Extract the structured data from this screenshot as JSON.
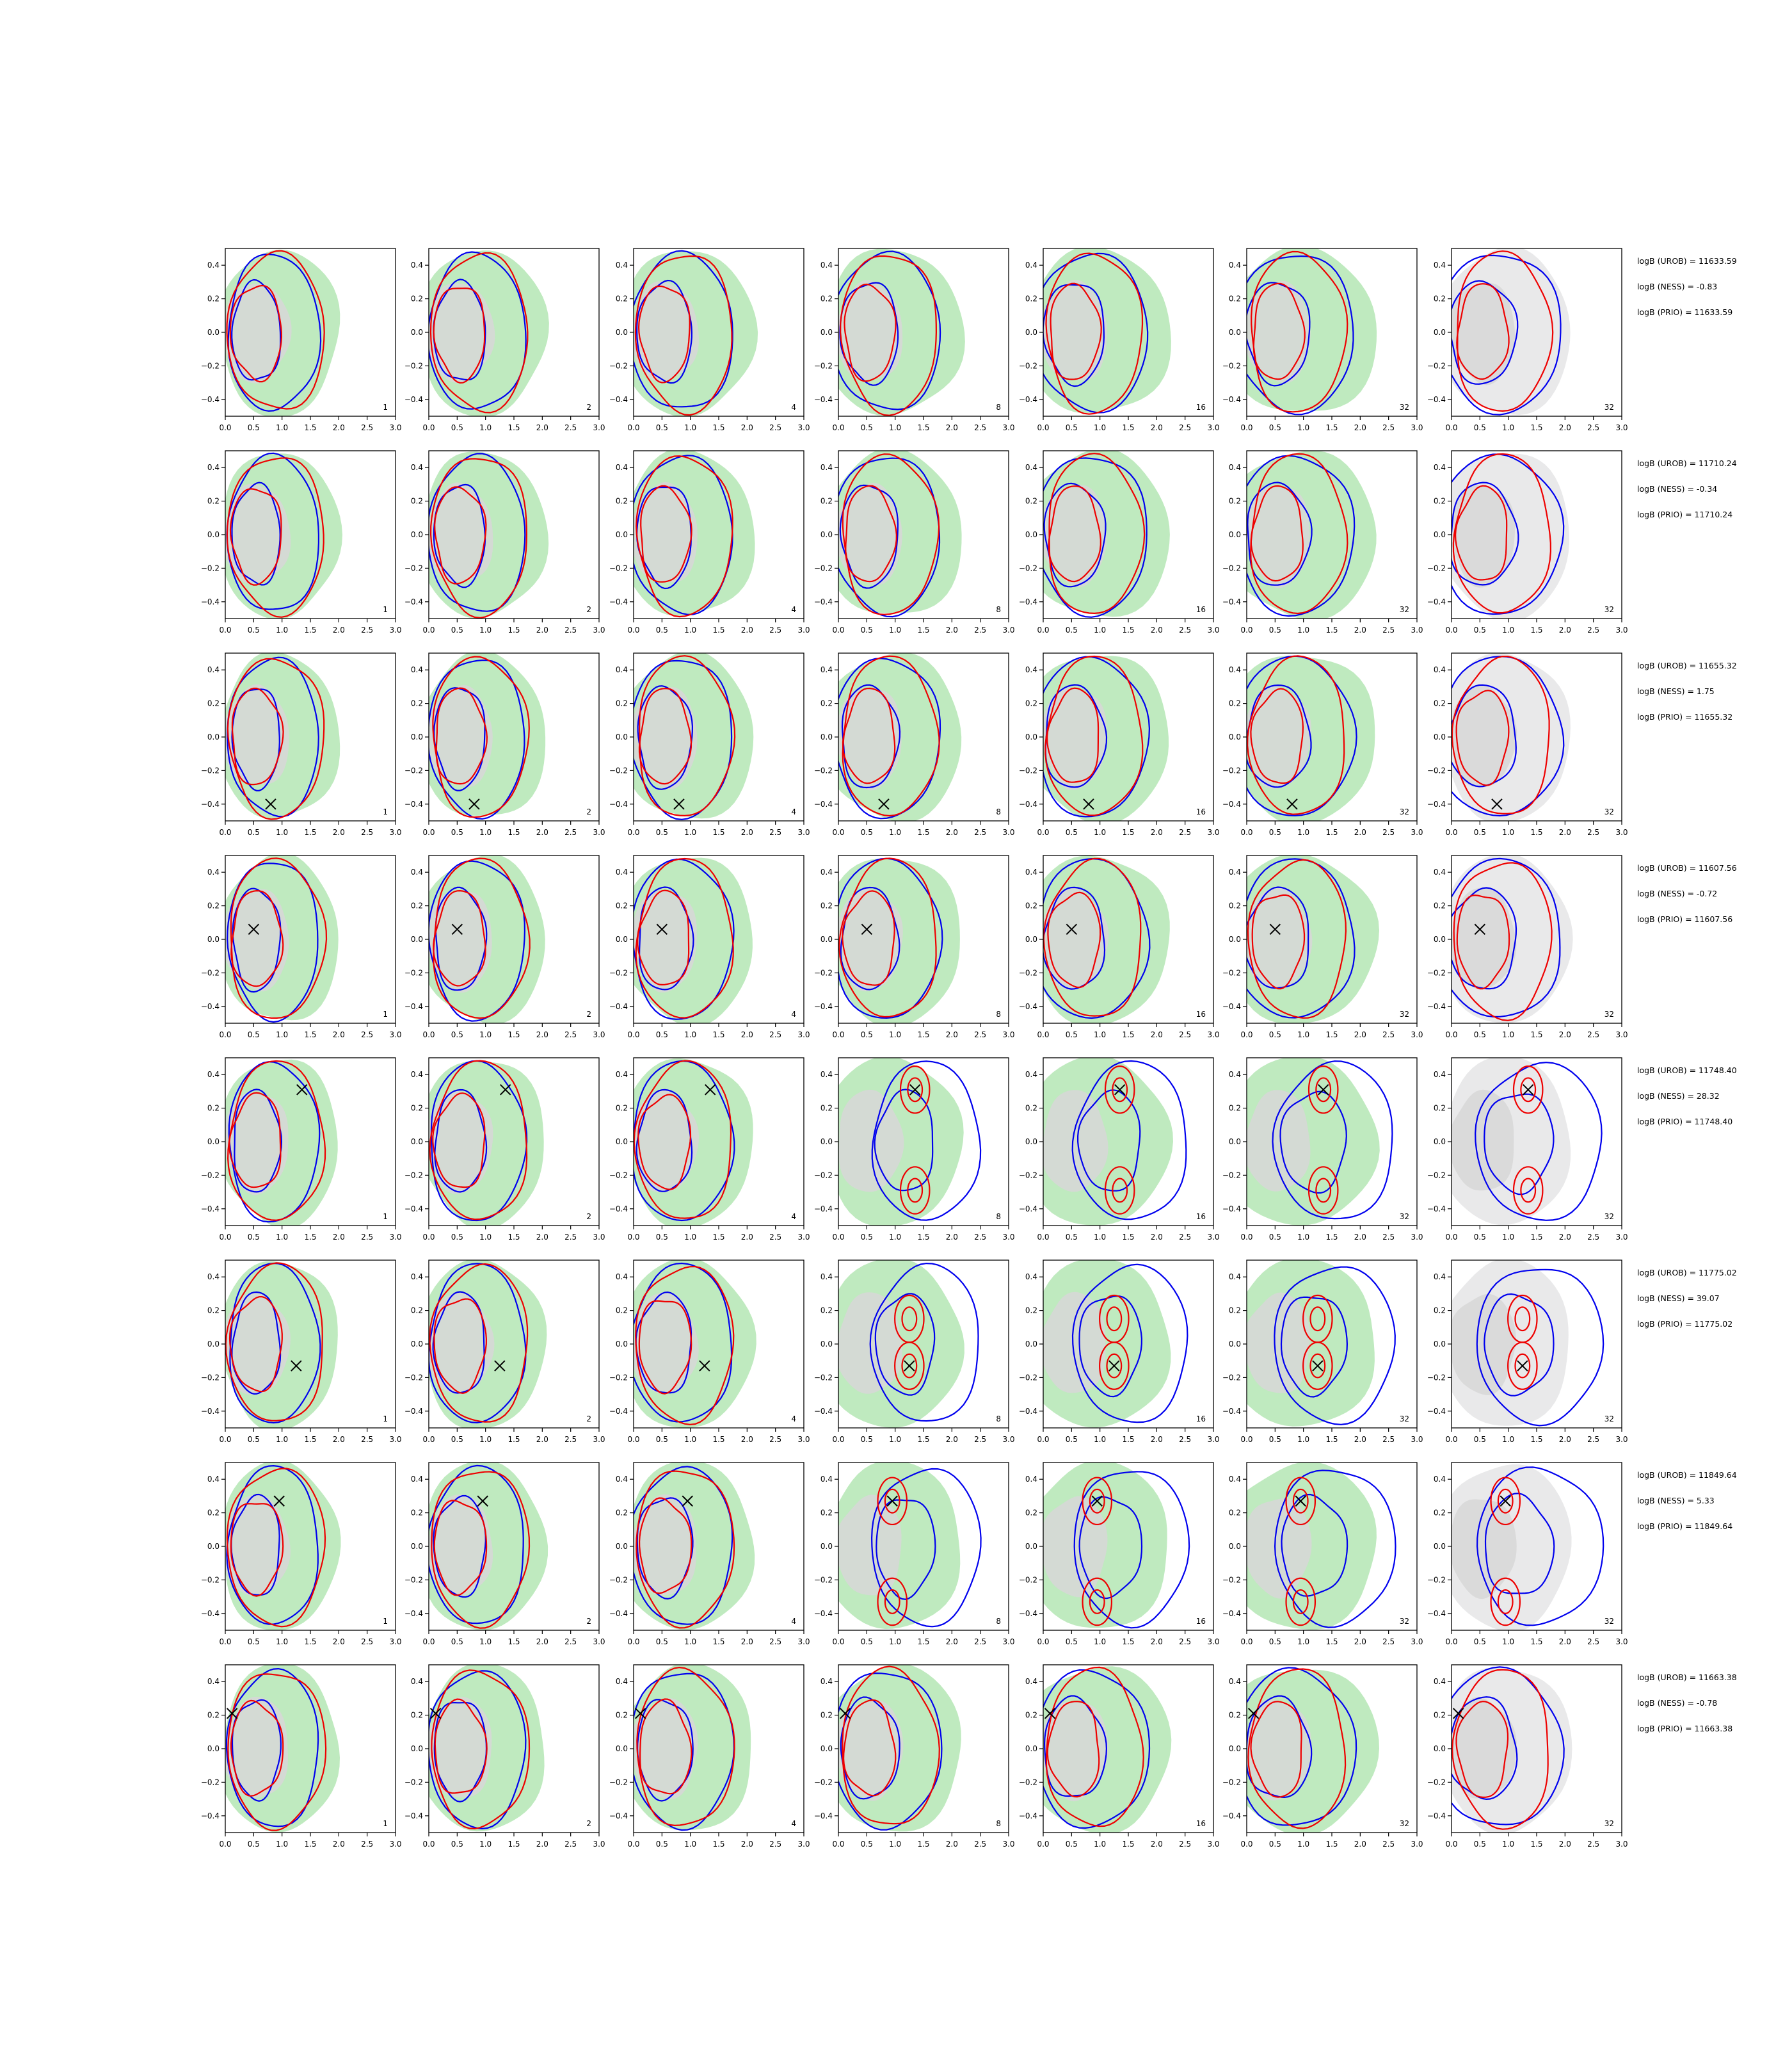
{
  "chart_data": {
    "type": "contour",
    "layout": {
      "rows": 8,
      "cols": 7
    },
    "xlim": [
      0.0,
      3.0
    ],
    "ylim": [
      -0.5,
      0.5
    ],
    "xticks": [
      "0.0",
      "0.5",
      "1.0",
      "1.5",
      "2.0",
      "2.5",
      "3.0"
    ],
    "yticks": [
      "0.4",
      "0.2",
      "0.0",
      "−0.2",
      "−0.4"
    ],
    "col_labels": [
      "1",
      "2",
      "4",
      "8",
      "16",
      "32",
      "32"
    ],
    "colors": {
      "green_fill": "#bfeabf",
      "gray_fill": "#d7d7d7",
      "outer_gray": "#e9e9ea",
      "blue": "#0000ee",
      "red": "#ee0000",
      "marker": "#000000"
    },
    "rows": [
      {
        "stats": [
          "logB (UROB) = 11633.59",
          "logB (NESS) = -0.83",
          "logB (PRIO) = 11633.59"
        ],
        "marker": null,
        "mode": "single"
      },
      {
        "stats": [
          "logB (UROB) = 11710.24",
          "logB (NESS) = -0.34",
          "logB (PRIO) = 11710.24"
        ],
        "marker": null,
        "mode": "single"
      },
      {
        "stats": [
          "logB (UROB) = 11655.32",
          "logB (NESS) = 1.75",
          "logB (PRIO) = 11655.32"
        ],
        "marker": [
          0.8,
          -0.4
        ],
        "mode": "single"
      },
      {
        "stats": [
          "logB (UROB) = 11607.56",
          "logB (NESS) = -0.72",
          "logB (PRIO) = 11607.56"
        ],
        "marker": [
          0.5,
          0.06
        ],
        "mode": "single"
      },
      {
        "stats": [
          "logB (UROB) = 11748.40",
          "logB (NESS) = 28.32",
          "logB (PRIO) = 11748.40"
        ],
        "marker": [
          1.35,
          0.31
        ],
        "mode": "twin"
      },
      {
        "stats": [
          "logB (UROB) = 11775.02",
          "logB (NESS) = 39.07",
          "logB (PRIO) = 11775.02"
        ],
        "marker": [
          1.25,
          -0.13
        ],
        "mode": "twin"
      },
      {
        "stats": [
          "logB (UROB) = 11849.64",
          "logB (NESS) = 5.33",
          "logB (PRIO) = 11849.64"
        ],
        "marker": [
          0.95,
          0.27
        ],
        "mode": "twin"
      },
      {
        "stats": [
          "logB (UROB) = 11663.38",
          "logB (NESS) = -0.78",
          "logB (PRIO) = 11663.38"
        ],
        "marker": [
          0.12,
          0.21
        ],
        "mode": "single"
      }
    ]
  }
}
